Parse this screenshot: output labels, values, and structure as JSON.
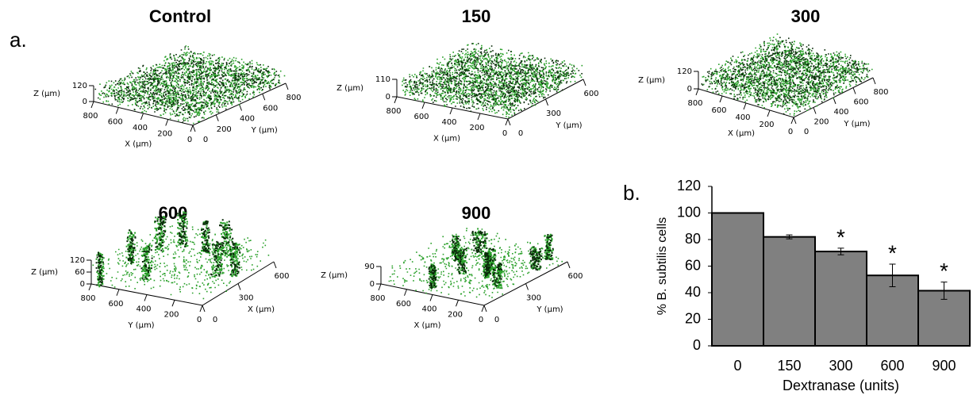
{
  "panel_a": {
    "label": "a.",
    "plots": [
      {
        "title": "Control",
        "z_label": "Z (µm)",
        "z_ticks": [
          120,
          0
        ],
        "left_label": "X (µm)",
        "left_ticks": [
          800,
          600,
          400,
          200,
          0
        ],
        "right_label": "Y (µm)",
        "right_ticks": [
          0,
          200,
          400,
          600,
          800
        ]
      },
      {
        "title": "150",
        "z_label": "Z (µm)",
        "z_ticks": [
          110,
          0
        ],
        "left_label": "X (µm)",
        "left_ticks": [
          800,
          600,
          400,
          200,
          0
        ],
        "right_label": "Y (µm)",
        "right_ticks": [
          0,
          300,
          600
        ]
      },
      {
        "title": "300",
        "z_label": "Z (µm)",
        "z_ticks": [
          120,
          0
        ],
        "left_label": "X (µm)",
        "left_ticks": [
          800,
          600,
          400,
          200,
          0
        ],
        "right_label": "Y (µm)",
        "right_ticks": [
          0,
          200,
          400,
          600,
          800
        ]
      },
      {
        "title": "600",
        "z_label": "Z (µm)",
        "z_ticks": [
          120,
          60,
          0
        ],
        "left_label": "Y (µm)",
        "left_ticks": [
          800,
          600,
          400,
          200,
          0
        ],
        "right_label": "X (µm)",
        "right_ticks": [
          0,
          300,
          600
        ]
      },
      {
        "title": "900",
        "z_label": "Z (µm)",
        "z_ticks": [
          90,
          0
        ],
        "left_label": "X (µm)",
        "left_ticks": [
          800,
          600,
          400,
          200,
          0
        ],
        "right_label": "Y (µm)",
        "right_ticks": [
          0,
          300,
          600
        ]
      }
    ]
  },
  "chart_data": {
    "type": "bar",
    "panel_label": "b.",
    "xlabel": "Dextranase (units)",
    "ylabel": "% B. subtilis cells",
    "categories": [
      "0",
      "150",
      "300",
      "600",
      "900"
    ],
    "values": [
      100,
      82,
      71,
      53,
      41.5
    ],
    "errors": [
      0,
      1.5,
      2.5,
      8.5,
      6.5
    ],
    "significance": [
      null,
      null,
      "*",
      "*",
      "*"
    ],
    "color": "#808080",
    "ylim": [
      0,
      120
    ],
    "yticks": [
      0,
      20,
      40,
      60,
      80,
      100,
      120
    ]
  }
}
